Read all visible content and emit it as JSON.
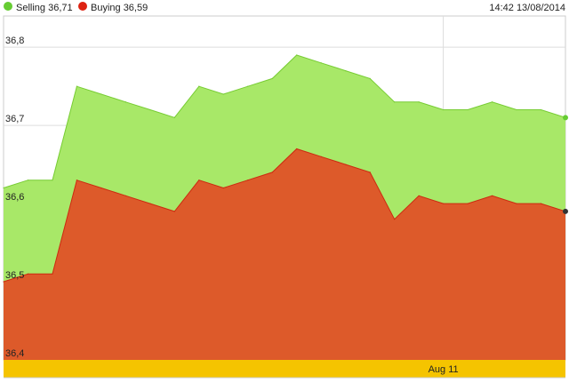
{
  "legend": {
    "selling_label": "Selling 36,71",
    "buying_label": "Buying 36,59",
    "selling_color": "#66cc33",
    "buying_color": "#dd2211"
  },
  "timestamp": "14:42 13/08/2014",
  "chart_data": {
    "type": "area",
    "x_tick_labels": [
      "Aug 11"
    ],
    "y_tick_labels": [
      "36,8",
      "36,7",
      "36,6",
      "36,5",
      "36,4"
    ],
    "y_ticks": [
      36.8,
      36.7,
      36.6,
      36.5,
      36.4
    ],
    "ylim": [
      36.4,
      36.84
    ],
    "grid": true,
    "x_tick_index": 18,
    "series": [
      {
        "name": "Selling",
        "color": "#a8e868",
        "line_color": "#77cc33",
        "values": [
          36.62,
          36.63,
          36.63,
          36.75,
          36.74,
          36.73,
          36.72,
          36.71,
          36.75,
          36.74,
          36.75,
          36.76,
          36.79,
          36.78,
          36.77,
          36.76,
          36.73,
          36.73,
          36.72,
          36.72,
          36.73,
          36.72,
          36.72,
          36.71
        ]
      },
      {
        "name": "Buying",
        "color": "#dd5a2a",
        "line_color": "#cc2a10",
        "values": [
          36.5,
          36.51,
          36.51,
          36.63,
          36.62,
          36.61,
          36.6,
          36.59,
          36.63,
          36.62,
          36.63,
          36.64,
          36.67,
          36.66,
          36.65,
          36.64,
          36.58,
          36.61,
          36.6,
          36.6,
          36.61,
          36.6,
          36.6,
          36.59
        ]
      }
    ]
  }
}
